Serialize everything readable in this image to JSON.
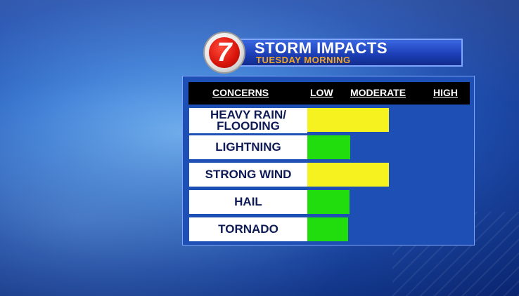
{
  "title": {
    "main": "STORM IMPACTS",
    "sub": "TUESDAY MORNING"
  },
  "logo": {
    "number": "7",
    "color": "#d8140a"
  },
  "header": {
    "concerns": "CONCERNS",
    "low": "LOW",
    "moderate": "MODERATE",
    "high": "HIGH"
  },
  "rows": [
    {
      "line1": "HEAVY RAIN/",
      "line2": "FLOODING",
      "level": "moderate"
    },
    {
      "label": "LIGHTNING",
      "level": "low"
    },
    {
      "label": "STRONG WIND",
      "level": "moderate"
    },
    {
      "label": "HAIL",
      "level": "low"
    },
    {
      "label": "TORNADO",
      "level": "low"
    }
  ],
  "colors": {
    "low": "#22dd0e",
    "moderate": "#f5f21f",
    "board": "#1d4fb4",
    "title_sub": "#f4a623"
  }
}
